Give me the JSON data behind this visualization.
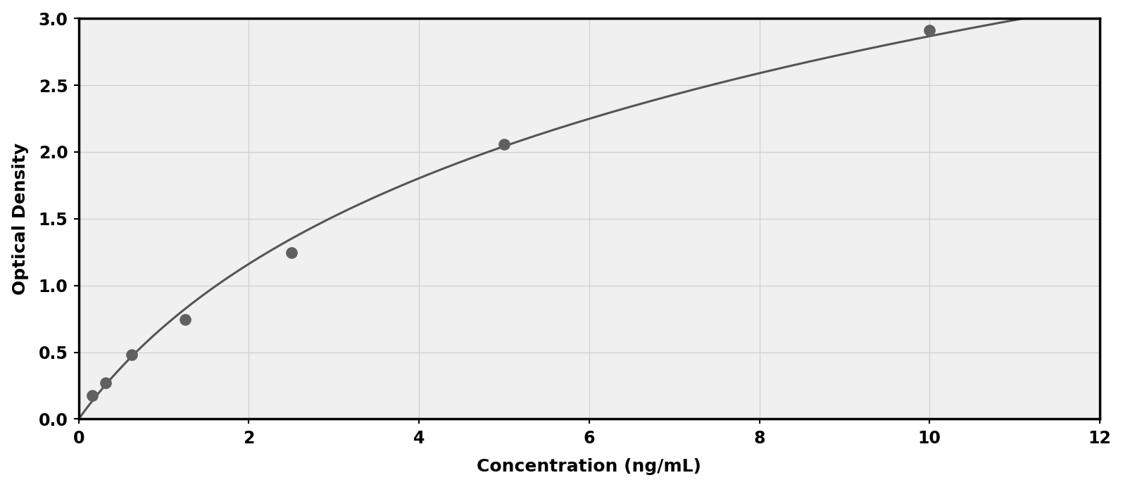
{
  "x_data": [
    0.156,
    0.313,
    0.625,
    1.25,
    2.5,
    5.0,
    10.0
  ],
  "y_data": [
    0.175,
    0.272,
    0.484,
    0.745,
    1.245,
    2.055,
    2.91
  ],
  "xlabel": "Concentration (ng/mL)",
  "ylabel": "Optical Density",
  "xlim": [
    0,
    12
  ],
  "ylim": [
    0,
    3
  ],
  "xticks": [
    0,
    2,
    4,
    6,
    8,
    10,
    12
  ],
  "yticks": [
    0,
    0.5,
    1,
    1.5,
    2,
    2.5,
    3
  ],
  "curve_color": "#555555",
  "marker_color": "#606060",
  "plot_background": "#f0f0f0",
  "outer_background": "#ffffff",
  "border_color": "#aaaaaa",
  "grid_color": "#d0d0d0",
  "xlabel_fontsize": 18,
  "ylabel_fontsize": 18,
  "tick_fontsize": 17,
  "marker_size": 11,
  "line_width": 2.2
}
